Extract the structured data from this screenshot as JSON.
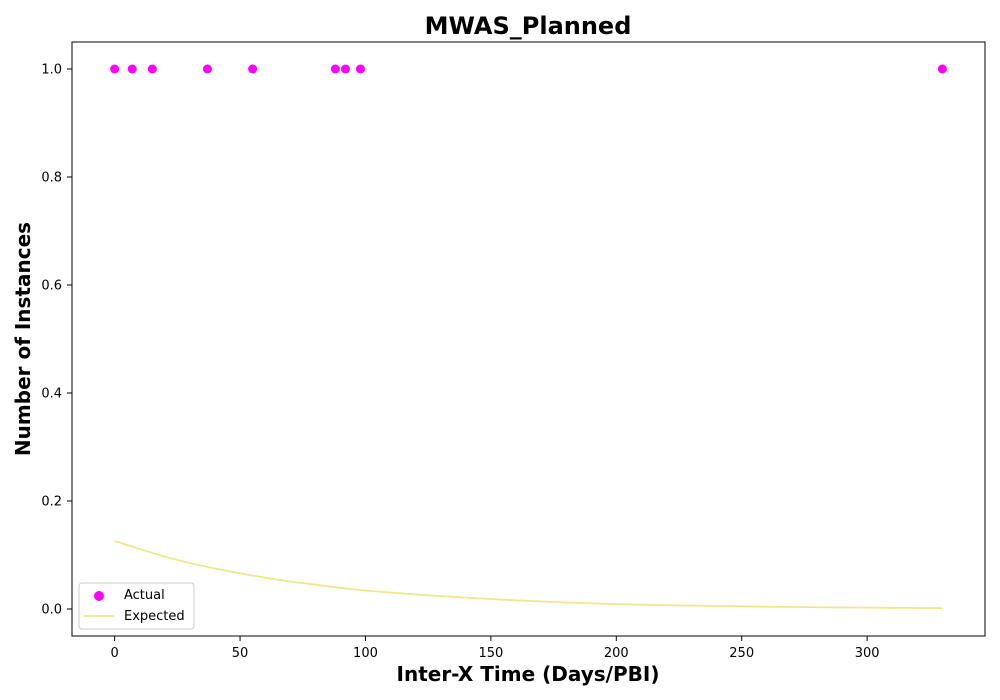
{
  "chart_data": {
    "type": "scatter",
    "title": "MWAS_Planned",
    "xlabel": "Inter-X Time (Days/PBI)",
    "ylabel": "Number of Instances",
    "xlim": [
      -17,
      347
    ],
    "ylim": [
      -0.05,
      1.05
    ],
    "x_ticks": [
      0,
      50,
      100,
      150,
      200,
      250,
      300
    ],
    "y_ticks": [
      0.0,
      0.2,
      0.4,
      0.6,
      0.8,
      1.0
    ],
    "x_tick_labels": [
      "0",
      "50",
      "100",
      "150",
      "200",
      "250",
      "300"
    ],
    "y_tick_labels": [
      "0.0",
      "0.2",
      "0.4",
      "0.6",
      "0.8",
      "1.0"
    ],
    "grid": false,
    "legend_position": "bottom-left",
    "series": [
      {
        "name": "Actual",
        "kind": "scatter",
        "color": "#ff00ff",
        "x": [
          0,
          7,
          15,
          37,
          55,
          88,
          92,
          98,
          330
        ],
        "y": [
          1,
          1,
          1,
          1,
          1,
          1,
          1,
          1,
          1
        ]
      },
      {
        "name": "Expected",
        "kind": "line",
        "color": "#f0e68c",
        "x": [
          0,
          10,
          20,
          30,
          40,
          50,
          60,
          70,
          80,
          90,
          100,
          120,
          140,
          160,
          180,
          200,
          220,
          240,
          260,
          280,
          300,
          320,
          330
        ],
        "y": [
          0.126,
          0.111,
          0.097,
          0.085,
          0.075,
          0.066,
          0.058,
          0.051,
          0.045,
          0.039,
          0.034,
          0.027,
          0.021,
          0.016,
          0.012,
          0.009,
          0.007,
          0.0055,
          0.0042,
          0.0032,
          0.0025,
          0.0019,
          0.0016
        ]
      }
    ]
  }
}
